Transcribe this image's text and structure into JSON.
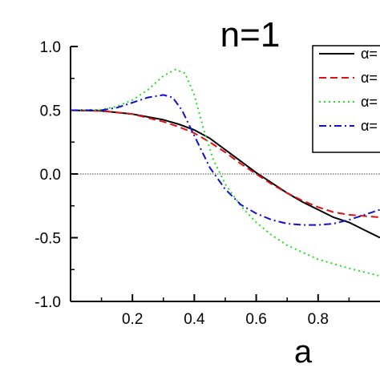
{
  "chart_data": {
    "type": "line",
    "title": "n=1",
    "xlabel": "a",
    "ylabel": "",
    "xlim": [
      0.0,
      1.0
    ],
    "ylim": [
      -1.0,
      1.0
    ],
    "x_ticks": [
      0.2,
      0.4,
      0.6,
      0.8
    ],
    "x_tick_labels": [
      "0.2",
      "0.4",
      "0.6",
      "0.8"
    ],
    "y_ticks": [
      -1.0,
      -0.5,
      0.0,
      0.5,
      1.0
    ],
    "y_tick_labels": [
      "-1.0",
      "-0.5",
      "0.0",
      "0.5",
      "1.0"
    ],
    "reference_line_y": 0.0,
    "grid": false,
    "legend_position": "top-right",
    "series": [
      {
        "name": "α=",
        "color": "#000000",
        "style": "solid",
        "points": [
          [
            0.0,
            0.5
          ],
          [
            0.1,
            0.495
          ],
          [
            0.2,
            0.47
          ],
          [
            0.3,
            0.425
          ],
          [
            0.35,
            0.39
          ],
          [
            0.4,
            0.345
          ],
          [
            0.45,
            0.28
          ],
          [
            0.5,
            0.19
          ],
          [
            0.55,
            0.1
          ],
          [
            0.6,
            0.01
          ],
          [
            0.65,
            -0.07
          ],
          [
            0.7,
            -0.15
          ],
          [
            0.75,
            -0.22
          ],
          [
            0.8,
            -0.28
          ],
          [
            0.85,
            -0.34
          ],
          [
            0.9,
            -0.38
          ],
          [
            0.95,
            -0.44
          ],
          [
            1.0,
            -0.5
          ]
        ]
      },
      {
        "name": "α=",
        "color": "#dd1111",
        "style": "dashed",
        "points": [
          [
            0.0,
            0.5
          ],
          [
            0.1,
            0.495
          ],
          [
            0.2,
            0.47
          ],
          [
            0.3,
            0.41
          ],
          [
            0.35,
            0.37
          ],
          [
            0.4,
            0.32
          ],
          [
            0.45,
            0.25
          ],
          [
            0.5,
            0.17
          ],
          [
            0.55,
            0.08
          ],
          [
            0.6,
            0.0
          ],
          [
            0.65,
            -0.08
          ],
          [
            0.7,
            -0.15
          ],
          [
            0.75,
            -0.21
          ],
          [
            0.8,
            -0.26
          ],
          [
            0.85,
            -0.3
          ],
          [
            0.9,
            -0.32
          ],
          [
            0.95,
            -0.33
          ],
          [
            1.0,
            -0.34
          ]
        ]
      },
      {
        "name": "α=",
        "color": "#22dd22",
        "style": "dotted",
        "points": [
          [
            0.0,
            0.5
          ],
          [
            0.1,
            0.505
          ],
          [
            0.15,
            0.53
          ],
          [
            0.2,
            0.58
          ],
          [
            0.25,
            0.66
          ],
          [
            0.3,
            0.77
          ],
          [
            0.34,
            0.82
          ],
          [
            0.37,
            0.79
          ],
          [
            0.4,
            0.62
          ],
          [
            0.43,
            0.35
          ],
          [
            0.46,
            0.12
          ],
          [
            0.5,
            -0.08
          ],
          [
            0.55,
            -0.25
          ],
          [
            0.6,
            -0.38
          ],
          [
            0.65,
            -0.48
          ],
          [
            0.7,
            -0.56
          ],
          [
            0.8,
            -0.67
          ],
          [
            0.9,
            -0.74
          ],
          [
            1.0,
            -0.8
          ]
        ]
      },
      {
        "name": "α=",
        "color": "#1111cc",
        "style": "dashdot",
        "points": [
          [
            0.0,
            0.5
          ],
          [
            0.1,
            0.5
          ],
          [
            0.15,
            0.52
          ],
          [
            0.2,
            0.56
          ],
          [
            0.25,
            0.6
          ],
          [
            0.3,
            0.62
          ],
          [
            0.33,
            0.6
          ],
          [
            0.36,
            0.5
          ],
          [
            0.4,
            0.3
          ],
          [
            0.45,
            0.05
          ],
          [
            0.5,
            -0.12
          ],
          [
            0.55,
            -0.24
          ],
          [
            0.6,
            -0.31
          ],
          [
            0.65,
            -0.36
          ],
          [
            0.7,
            -0.39
          ],
          [
            0.75,
            -0.4
          ],
          [
            0.8,
            -0.4
          ],
          [
            0.85,
            -0.39
          ],
          [
            0.9,
            -0.36
          ],
          [
            0.95,
            -0.32
          ],
          [
            1.0,
            -0.28
          ]
        ]
      }
    ]
  }
}
